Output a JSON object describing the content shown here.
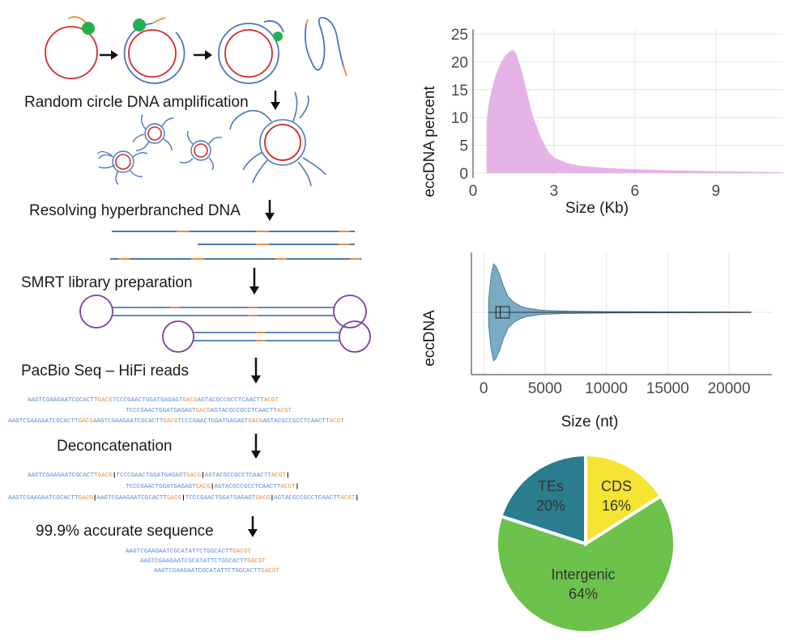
{
  "workflow": {
    "steps": [
      "Random circle DNA amplification",
      "Resolving hyperbranched DNA",
      "SMRT library preparation",
      "PacBio Seq – HiFi reads",
      "Deconcatenation",
      "99.9% accurate sequence"
    ],
    "hifi_reads": [
      [
        [
          "AAGTCGAAGAATCGCACTT",
          "blue"
        ],
        [
          "GACG",
          "orange"
        ],
        [
          "TCCCGAACTGGATGAGAGT",
          "blue"
        ],
        [
          "GACG",
          "orange"
        ],
        [
          "AGTACGCCGCCTCAACTT",
          "blue"
        ],
        [
          "ACGT",
          "orange"
        ]
      ],
      [
        [
          "TCCCGAACTGGATGAGAGT",
          "blue"
        ],
        [
          "GACG",
          "orange"
        ],
        [
          "AGTACGCCGCCTCAACTT",
          "blue"
        ],
        [
          "ACGT",
          "orange"
        ]
      ],
      [
        [
          "AAGTCGAAGAATCGCACTT",
          "blue"
        ],
        [
          "GACG",
          "orange"
        ],
        [
          "AAGTCGAAGAATCGCACTT",
          "blue"
        ],
        [
          "GACG",
          "orange"
        ],
        [
          "TCCCGAACTGGATGAGAGT",
          "blue"
        ],
        [
          "GACG",
          "orange"
        ],
        [
          "AGTACGCCGCCTCAACTT",
          "blue"
        ],
        [
          "ACGT",
          "orange"
        ]
      ]
    ],
    "deconcatenated_reads": [
      [
        [
          "AAGTCGAAGAATCGCACTT",
          "blue"
        ],
        [
          "GACG",
          "orange"
        ],
        [
          "|",
          "cut"
        ],
        [
          "TCCCGAACTGGATGAGAGT",
          "blue"
        ],
        [
          "GACG",
          "orange"
        ],
        [
          "|",
          "cut"
        ],
        [
          "AGTACGCCGCCTCAACTT",
          "blue"
        ],
        [
          "ACGT",
          "orange"
        ],
        [
          "|",
          "cut"
        ]
      ],
      [
        [
          "TCCCGAACTGGATGAGAGT",
          "blue"
        ],
        [
          "GACG",
          "orange"
        ],
        [
          "|",
          "cut"
        ],
        [
          "AGTACGCCGCCTCAACTT",
          "blue"
        ],
        [
          "ACGT",
          "orange"
        ],
        [
          "|",
          "cut"
        ]
      ],
      [
        [
          "AAGTCGAAGAATCGCACTT",
          "blue"
        ],
        [
          "GACG",
          "orange"
        ],
        [
          "|",
          "cut"
        ],
        [
          "AAGTCGAAGAATCGCACTT",
          "blue"
        ],
        [
          "GACG",
          "orange"
        ],
        [
          "|",
          "cut"
        ],
        [
          "TCCCGAACTGGATGAGAGT",
          "blue"
        ],
        [
          "GACG",
          "orange"
        ],
        [
          "|",
          "cut"
        ],
        [
          "AGTACGCCGCCTCAACTT",
          "blue"
        ],
        [
          "ACGT",
          "orange"
        ],
        [
          "|",
          "cut"
        ]
      ]
    ],
    "consensus_reads": [
      [
        [
          "AAGTCGAAGAATCGCATATTCTGGCACTT",
          "blue"
        ],
        [
          "GACGT",
          "orange"
        ]
      ],
      [
        [
          "AAGTCGAAGAATCGCATATTCTGGCACTT",
          "blue"
        ],
        [
          "GACGT",
          "orange"
        ]
      ],
      [
        [
          "AAGTCGAAGAATCGCATATTCTGGCACTT",
          "blue"
        ],
        [
          "GACGT",
          "orange"
        ]
      ]
    ]
  },
  "colors": {
    "circle_red": "#d42a2a",
    "strand_blue": "#4a77bb",
    "primer_orange": "#e8903a",
    "polymerase_green": "#22b14c",
    "adapter_purple": "#7b3fa0",
    "seq_blue": "#5b8bd6",
    "seq_orange": "#e8903a",
    "density_fill": "#e6b3e6",
    "violin_fill": "#7aabc4",
    "pie_intergenic": "#6cc24a",
    "pie_tes": "#2a7d8e",
    "pie_cds": "#f5e431",
    "grid": "#e6e6e6"
  },
  "chart_data": [
    {
      "type": "area",
      "title": "",
      "xlabel": "Size (Kb)",
      "ylabel": "eccDNA percent",
      "xlim": [
        0,
        11.5
      ],
      "ylim": [
        0,
        25
      ],
      "xticks": [
        0,
        3,
        6,
        9
      ],
      "yticks": [
        0,
        5,
        10,
        15,
        20,
        25
      ],
      "x": [
        0.5,
        0.5,
        0.6,
        0.8,
        1.0,
        1.2,
        1.4,
        1.5,
        1.6,
        1.8,
        2.0,
        2.2,
        2.5,
        2.8,
        3.0,
        3.5,
        4.0,
        5.0,
        6.0,
        7.0,
        8.0,
        9.0,
        10.0,
        11.0,
        11.5
      ],
      "values": [
        0,
        9.5,
        13,
        17,
        19.5,
        21.2,
        22.0,
        22.1,
        21.5,
        18.5,
        14.5,
        10.5,
        6.5,
        3.8,
        2.8,
        1.8,
        1.3,
        0.9,
        0.7,
        0.55,
        0.45,
        0.35,
        0.28,
        0.2,
        0.15
      ]
    },
    {
      "type": "violin",
      "xlabel": "Size (nt)",
      "ylabel": "eccDNA",
      "xlim": [
        -1000,
        23500
      ],
      "xticks": [
        0,
        5000,
        10000,
        15000,
        20000
      ],
      "min": 400,
      "q1": 1000,
      "median": 1350,
      "q3": 2100,
      "max": 21800,
      "density_x": [
        400,
        600,
        800,
        1000,
        1300,
        1600,
        2000,
        2500,
        3000,
        3500,
        4000,
        4500,
        5000,
        6000,
        7000,
        8000,
        10000,
        12000,
        15000,
        18000,
        21800
      ],
      "density": [
        0.25,
        0.75,
        1.0,
        0.95,
        0.78,
        0.55,
        0.32,
        0.2,
        0.13,
        0.09,
        0.07,
        0.05,
        0.04,
        0.03,
        0.025,
        0.02,
        0.015,
        0.012,
        0.01,
        0.008,
        0.006
      ]
    },
    {
      "type": "pie",
      "slices": [
        {
          "label": "Intergenic",
          "value": 64,
          "text": "64%"
        },
        {
          "label": "TEs",
          "value": 20,
          "text": "20%"
        },
        {
          "label": "CDS",
          "value": 16,
          "text": "16%"
        }
      ]
    }
  ]
}
